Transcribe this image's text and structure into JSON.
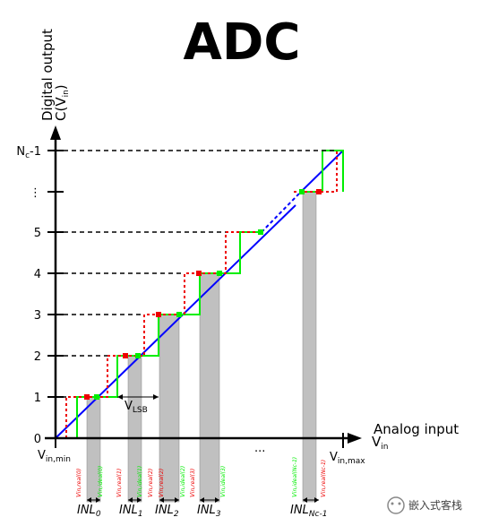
{
  "title": "ADC",
  "y_axis": {
    "line1": "Digital output",
    "line2_main": "C(V",
    "line2_sub": "in",
    "line2_end": ")",
    "ticks": [
      {
        "label": "0",
        "level": 0
      },
      {
        "label": "1",
        "level": 1
      },
      {
        "label": "2",
        "level": 2
      },
      {
        "label": "3",
        "level": 3
      },
      {
        "label": "4",
        "level": 4
      },
      {
        "label": "5",
        "level": 5
      },
      {
        "label": "⋮",
        "level": 6
      },
      {
        "label": "N",
        "sub": "c",
        "suffix": "-1",
        "level": 7
      }
    ]
  },
  "x_axis": {
    "name": "Analog input",
    "var_main": "V",
    "var_sub": "in",
    "min_main": "V",
    "min_sub": "in,min",
    "max_main": "V",
    "max_sub": "in,max",
    "ellipsis": "..."
  },
  "lsb": {
    "main": "V",
    "sub": "LSB"
  },
  "inl_labels": [
    {
      "main": "INL",
      "sub": "0"
    },
    {
      "main": "INL",
      "sub": "1"
    },
    {
      "main": "INL",
      "sub": "2"
    },
    {
      "main": "INL",
      "sub": "3"
    },
    {
      "main": "INL",
      "sub": "Nc-1"
    }
  ],
  "vlabels": {
    "real": [
      "V",
      "in,real(0)",
      "in,real(1)",
      "in,real(2)",
      "in,real(3)",
      "in,real(Nc-1)"
    ],
    "ideal": [
      "V",
      "in,ideal(0)",
      "in,ideal(1)",
      "in,ideal(2)",
      "in,ideal(3)",
      "in,ideal(Nc-1)"
    ]
  },
  "colors": {
    "ideal_line": "#0000ff",
    "ideal_staircase": "#00ee00",
    "real_staircase": "#ee0000",
    "inl_bar": "#c0c0c0"
  },
  "watermark": "嵌入式客栈"
}
